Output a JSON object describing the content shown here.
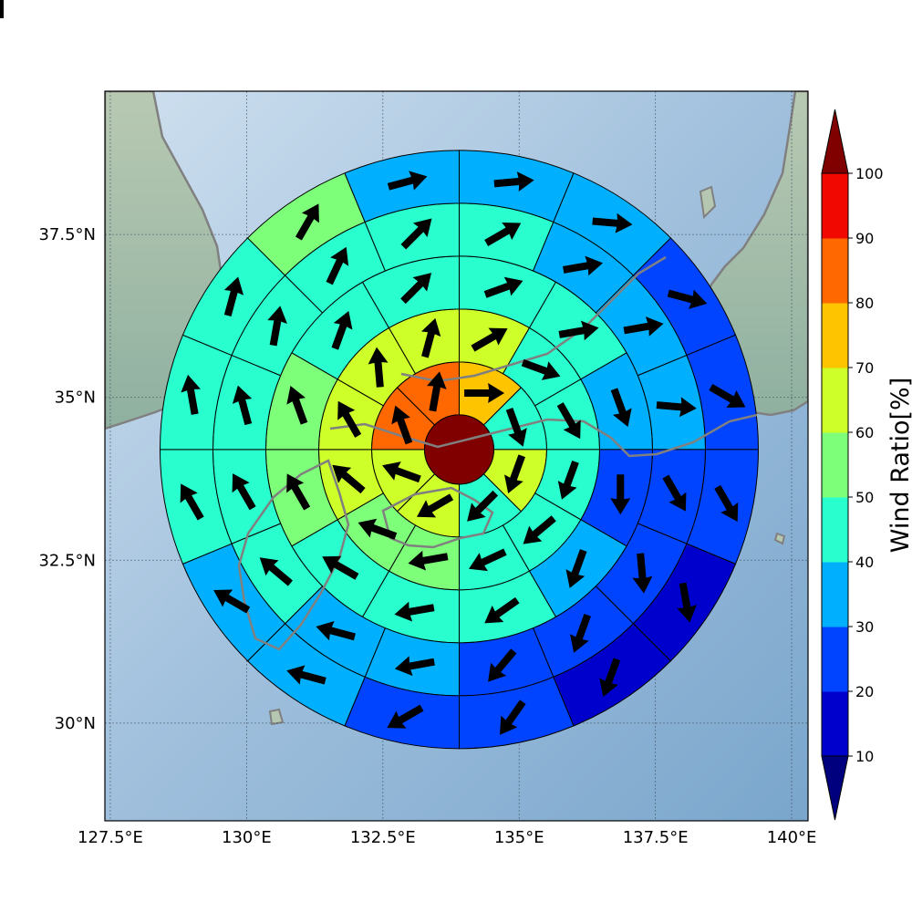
{
  "chart_data": {
    "type": "heatmap",
    "subtype": "polar-sector-map-with-wind-arrows",
    "map": {
      "xlim": [
        127.4,
        140.3
      ],
      "ylim": [
        28.5,
        39.7
      ],
      "x_ticks": [
        127.5,
        130,
        132.5,
        135,
        137.5,
        140
      ],
      "x_tick_labels": [
        "127.5°E",
        "130°E",
        "132.5°E",
        "135°E",
        "137.5°E",
        "140°E"
      ],
      "y_ticks": [
        30,
        32.5,
        35,
        37.5
      ],
      "y_tick_labels": [
        "30°N",
        "32.5°N",
        "35°N",
        "37.5°N"
      ],
      "grid": true
    },
    "colorbar": {
      "label": "Wind Ratio[%]",
      "levels": [
        10,
        20,
        30,
        40,
        50,
        60,
        70,
        80,
        90,
        100
      ],
      "tick_labels": [
        "10",
        "20",
        "30",
        "40",
        "50",
        "60",
        "70",
        "80",
        "90",
        "100"
      ],
      "colors": [
        "#0000cd",
        "#0044ff",
        "#00b0ff",
        "#29ffce",
        "#7dff7a",
        "#ceff29",
        "#ffc400",
        "#ff6800",
        "#f10800"
      ],
      "under_color": "#00007f",
      "over_color": "#800000",
      "extend": "both"
    },
    "center": {
      "lon": 133.9,
      "lat": 34.2,
      "value": 100
    },
    "rings": [
      {
        "sector_deg": 45,
        "values": [
          70,
          40,
          60,
          45,
          60,
          60,
          80,
          80
        ],
        "directions": [
          90,
          160,
          200,
          225,
          240,
          290,
          340,
          10
        ]
      },
      {
        "sector_deg": 30,
        "values": [
          60,
          45,
          45,
          45,
          40,
          40,
          50,
          50,
          60,
          60,
          60,
          60
        ],
        "directions": [
          60,
          110,
          150,
          200,
          230,
          245,
          260,
          290,
          310,
          330,
          355,
          15
        ]
      },
      {
        "sector_deg": 30,
        "values": [
          40,
          40,
          30,
          20,
          30,
          40,
          40,
          40,
          50,
          50,
          40,
          40
        ],
        "directions": [
          70,
          80,
          160,
          180,
          200,
          235,
          260,
          300,
          330,
          340,
          20,
          45
        ]
      },
      {
        "sector_deg": 22.5,
        "values": [
          40,
          30,
          30,
          30,
          20,
          20,
          20,
          20,
          30,
          30,
          40,
          40,
          40,
          40,
          40,
          40
        ],
        "directions": [
          60,
          80,
          80,
          95,
          150,
          175,
          200,
          220,
          260,
          285,
          310,
          330,
          345,
          10,
          25,
          45
        ]
      },
      {
        "sector_deg": 22.5,
        "values": [
          30,
          30,
          20,
          20,
          20,
          10,
          10,
          20,
          20,
          30,
          30,
          40,
          40,
          40,
          50,
          30
        ],
        "directions": [
          85,
          95,
          105,
          120,
          150,
          170,
          200,
          215,
          240,
          285,
          300,
          330,
          350,
          15,
          30,
          75
        ]
      },
      {
        "sector_deg": 22.5,
        "values": [
          20,
          20,
          20,
          10,
          10,
          5,
          10,
          10,
          20,
          20,
          20,
          30,
          30,
          50,
          40,
          30
        ],
        "directions": [
          80,
          100,
          110,
          125,
          140,
          150,
          160,
          170,
          200,
          215,
          240,
          285,
          340,
          355,
          20,
          40
        ]
      },
      {
        "sector_deg": 22.5,
        "values": [
          30,
          30,
          20,
          10,
          10,
          10,
          10,
          10,
          10,
          10,
          20,
          20,
          20,
          20,
          30,
          30
        ],
        "directions": [
          60,
          75,
          100,
          120,
          140,
          150,
          170,
          205,
          220,
          250,
          270,
          300,
          320,
          340,
          30,
          45
        ]
      }
    ]
  }
}
